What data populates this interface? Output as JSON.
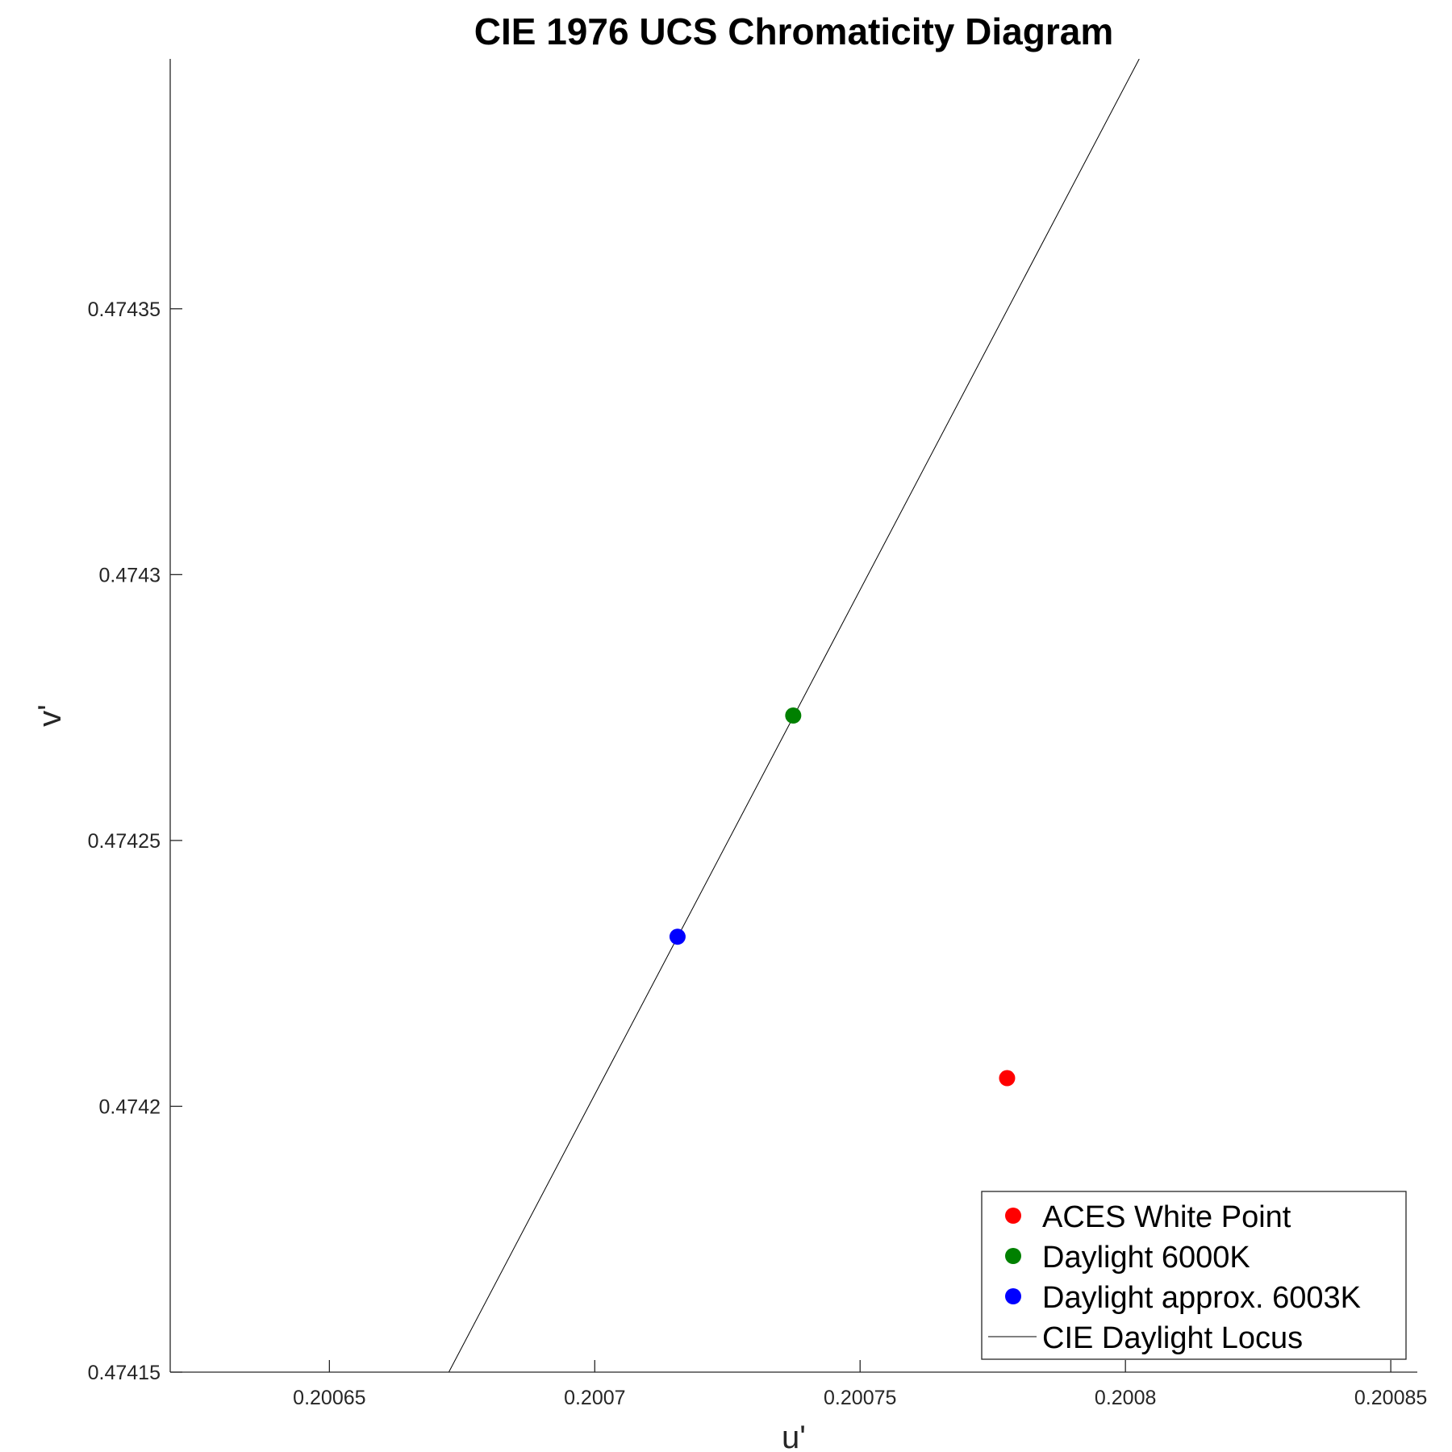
{
  "chart_data": {
    "type": "scatter",
    "title": "CIE 1976 UCS Chromaticity Diagram",
    "xlabel": "u'",
    "ylabel": "v'",
    "xlim": [
      0.20062,
      0.200855
    ],
    "ylim": [
      0.47415,
      0.474397
    ],
    "xticks": [
      0.20065,
      0.2007,
      0.20075,
      0.2008,
      0.20085
    ],
    "xtick_labels": [
      "0.20065",
      "0.2007",
      "0.20075",
      "0.2008",
      "0.20085"
    ],
    "yticks": [
      0.47415,
      0.4742,
      0.47425,
      0.4743,
      0.47435
    ],
    "ytick_labels": [
      "0.47415",
      "0.4742",
      "0.47425",
      "0.4743",
      "0.47435"
    ],
    "grid": false,
    "legend_position": "bottom-right",
    "series": [
      {
        "name": "ACES White Point",
        "kind": "point",
        "color": "#ff0000",
        "x": [
          0.2007777
        ],
        "y": [
          0.4742053
        ]
      },
      {
        "name": "Daylight 6000K",
        "kind": "point",
        "color": "#008000",
        "x": [
          0.2007374
        ],
        "y": [
          0.4742735
        ]
      },
      {
        "name": "Daylight approx. 6003K",
        "kind": "point",
        "color": "#0000ff",
        "x": [
          0.2007156
        ],
        "y": [
          0.4742319
        ]
      },
      {
        "name": "CIE Daylight Locus",
        "kind": "line",
        "color": "#000000",
        "x": [
          0.2006725,
          0.2008026
        ],
        "y": [
          0.47415,
          0.474397
        ]
      }
    ]
  }
}
